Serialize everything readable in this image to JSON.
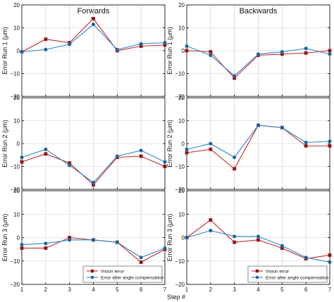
{
  "colors": {
    "vision": "#c8282d",
    "compensated": "#2f86c6",
    "grid": "#cfcfcf",
    "axis": "#000000"
  },
  "chart_data": {
    "type": "line",
    "x": [
      1,
      2,
      3,
      4,
      5,
      6,
      7
    ],
    "xlim": [
      1,
      7
    ],
    "ylim": [
      -20,
      20
    ],
    "x_ticks": [
      "1",
      "2",
      "3",
      "4",
      "5",
      "6",
      "7"
    ],
    "y_ticks": [
      "20",
      "10",
      "0",
      "−10",
      "−20"
    ],
    "xlabel": "Step #",
    "grid": true,
    "legend": {
      "placement": "bottom-right",
      "entries": [
        "Vision error",
        "Error after angle compensation"
      ]
    },
    "columns": [
      {
        "title": "Forwards"
      },
      {
        "title": "Backwards"
      }
    ],
    "rows": [
      {
        "ylabel": "Error Run 1 (μm)"
      },
      {
        "ylabel": "Error Run 2 (μm)"
      },
      {
        "ylabel": "Error Run 3 (μm)"
      }
    ],
    "panels": [
      {
        "row": 0,
        "col": 0,
        "series": [
          {
            "name": "Vision error",
            "marker": "square",
            "values": [
              -0.5,
              5,
              3.5,
              14,
              0,
              2,
              2.5
            ]
          },
          {
            "name": "Error after angle compensation",
            "marker": "circle",
            "values": [
              -0.5,
              0.5,
              2.8,
              11.5,
              0.5,
              3,
              3.5
            ]
          }
        ]
      },
      {
        "row": 0,
        "col": 1,
        "series": [
          {
            "name": "Vision error",
            "marker": "square",
            "values": [
              0,
              -0.5,
              -12,
              -2,
              -1.5,
              -1,
              0
            ]
          },
          {
            "name": "Error after angle compensation",
            "marker": "circle",
            "values": [
              2,
              -2,
              -11,
              -1.5,
              -0.5,
              1,
              -1.5
            ]
          }
        ]
      },
      {
        "row": 1,
        "col": 0,
        "series": [
          {
            "name": "Vision error",
            "marker": "square",
            "values": [
              -8,
              -4.5,
              -8.5,
              -18,
              -6,
              -5.5,
              -10
            ]
          },
          {
            "name": "Error after angle compensation",
            "marker": "circle",
            "values": [
              -6,
              -2.5,
              -9.5,
              -17,
              -5.5,
              -3,
              -8
            ]
          }
        ]
      },
      {
        "row": 1,
        "col": 1,
        "series": [
          {
            "name": "Vision error",
            "marker": "square",
            "values": [
              -4,
              -2.5,
              -11,
              8,
              7,
              -1,
              -1
            ]
          },
          {
            "name": "Error after angle compensation",
            "marker": "circle",
            "values": [
              -2.5,
              0,
              -6,
              8,
              7,
              0.5,
              1
            ]
          }
        ]
      },
      {
        "row": 2,
        "col": 0,
        "series": [
          {
            "name": "Vision error",
            "marker": "square",
            "values": [
              -4.5,
              -4.5,
              0,
              -1,
              -2,
              -10.5,
              -5
            ]
          },
          {
            "name": "Error after angle compensation",
            "marker": "circle",
            "values": [
              -3,
              -2.5,
              -1,
              -1,
              -2,
              -8.5,
              -4.5
            ]
          }
        ]
      },
      {
        "row": 2,
        "col": 1,
        "series": [
          {
            "name": "Vision error",
            "marker": "square",
            "values": [
              0,
              7.5,
              -2,
              -1,
              -4.5,
              -9,
              -7.5
            ]
          },
          {
            "name": "Error after angle compensation",
            "marker": "circle",
            "values": [
              0,
              3,
              0.5,
              0.5,
              -3.5,
              -8.5,
              -10.5
            ]
          }
        ]
      }
    ]
  }
}
